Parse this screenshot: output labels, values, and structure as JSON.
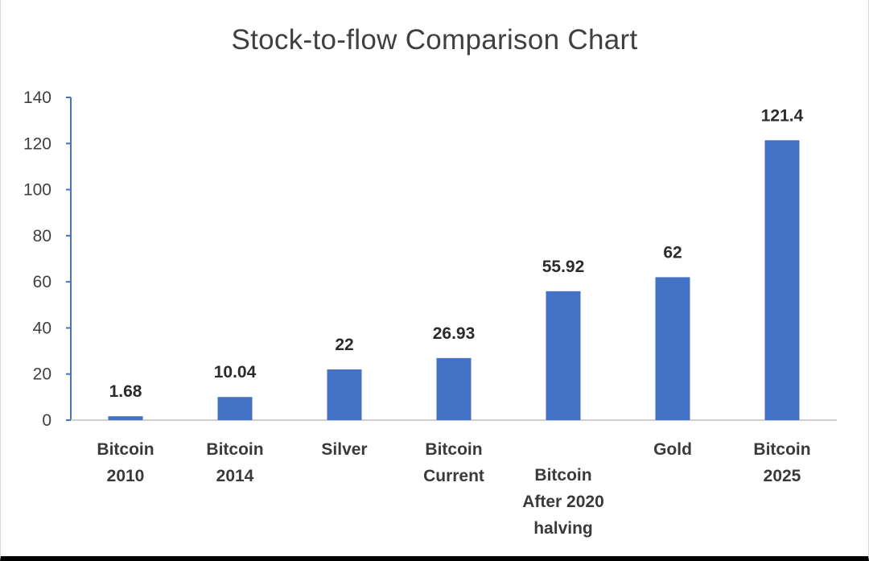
{
  "chart_data": {
    "type": "bar",
    "title": "Stock-to-flow Comparison Chart",
    "xlabel": "",
    "ylabel": "",
    "categories": [
      [
        "Bitcoin",
        "2010"
      ],
      [
        "Bitcoin",
        "2014"
      ],
      [
        "Silver"
      ],
      [
        "Bitcoin",
        "Current"
      ],
      [
        "Bitcoin",
        "After 2020",
        "halving"
      ],
      [
        "Gold"
      ],
      [
        "Bitcoin",
        "2025"
      ]
    ],
    "values": [
      1.68,
      10.04,
      22,
      26.93,
      55.92,
      62,
      121.4
    ],
    "value_labels": [
      "1.68",
      "10.04",
      "22",
      "26.93",
      "55.92",
      "62",
      "121.4"
    ],
    "ylim": [
      0,
      140
    ],
    "yticks": [
      0,
      20,
      40,
      60,
      80,
      100,
      120,
      140
    ],
    "grid": false,
    "legend": "none",
    "bar_color": "#4472c4",
    "axis_color": "#4472c4"
  }
}
